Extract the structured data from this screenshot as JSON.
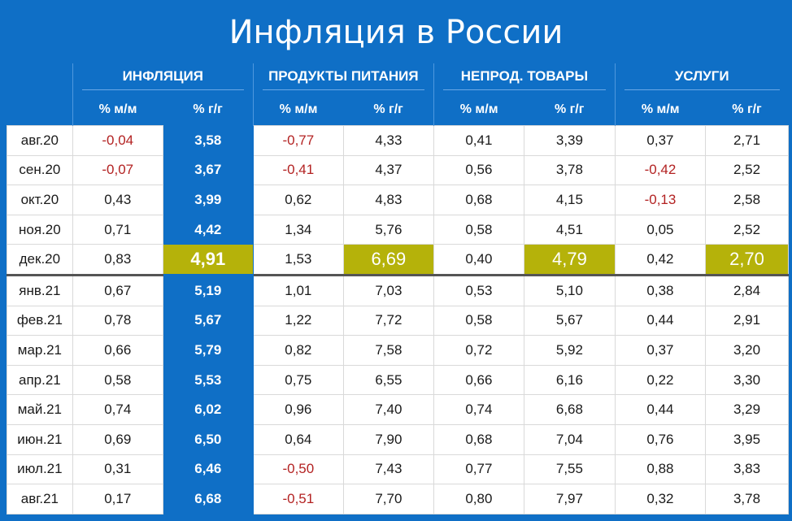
{
  "title": "Инфляция в России",
  "groups": [
    "ИНФЛЯЦИЯ",
    "ПРОДУКТЫ ПИТАНИЯ",
    "НЕПРОД. ТОВАРЫ",
    "УСЛУГИ"
  ],
  "subheaders": [
    "% м/м",
    "% г/г",
    "% м/м",
    "% г/г",
    "% м/м",
    "% г/г",
    "% м/м",
    "% г/г"
  ],
  "colors": {
    "background": "#0f6fc6",
    "negative": "#b32222",
    "highlight": "#b5b20a",
    "divider": "#555555"
  },
  "chart_data": {
    "type": "table",
    "title": "Инфляция в России",
    "columns": [
      "",
      "ИНФЛЯЦИЯ % м/м",
      "ИНФЛЯЦИЯ % г/г",
      "ПРОДУКТЫ ПИТАНИЯ % м/м",
      "ПРОДУКТЫ ПИТАНИЯ % г/г",
      "НЕПРОД. ТОВАРЫ % м/м",
      "НЕПРОД. ТОВАРЫ % г/г",
      "УСЛУГИ % м/м",
      "УСЛУГИ % г/г"
    ],
    "highlighted_row": "дек.20",
    "rows": [
      {
        "month": "авг.20",
        "values": [
          "-0,04",
          "3,58",
          "-0,77",
          "4,33",
          "0,41",
          "3,39",
          "0,37",
          "2,71"
        ]
      },
      {
        "month": "сен.20",
        "values": [
          "-0,07",
          "3,67",
          "-0,41",
          "4,37",
          "0,56",
          "3,78",
          "-0,42",
          "2,52"
        ]
      },
      {
        "month": "окт.20",
        "values": [
          "0,43",
          "3,99",
          "0,62",
          "4,83",
          "0,68",
          "4,15",
          "-0,13",
          "2,58"
        ]
      },
      {
        "month": "ноя.20",
        "values": [
          "0,71",
          "4,42",
          "1,34",
          "5,76",
          "0,58",
          "4,51",
          "0,05",
          "2,52"
        ]
      },
      {
        "month": "дек.20",
        "values": [
          "0,83",
          "4,91",
          "1,53",
          "6,69",
          "0,40",
          "4,79",
          "0,42",
          "2,70"
        ]
      },
      {
        "month": "янв.21",
        "values": [
          "0,67",
          "5,19",
          "1,01",
          "7,03",
          "0,53",
          "5,10",
          "0,38",
          "2,84"
        ]
      },
      {
        "month": "фев.21",
        "values": [
          "0,78",
          "5,67",
          "1,22",
          "7,72",
          "0,58",
          "5,67",
          "0,44",
          "2,91"
        ]
      },
      {
        "month": "мар.21",
        "values": [
          "0,66",
          "5,79",
          "0,82",
          "7,58",
          "0,72",
          "5,92",
          "0,37",
          "3,20"
        ]
      },
      {
        "month": "апр.21",
        "values": [
          "0,58",
          "5,53",
          "0,75",
          "6,55",
          "0,66",
          "6,16",
          "0,22",
          "3,30"
        ]
      },
      {
        "month": "май.21",
        "values": [
          "0,74",
          "6,02",
          "0,96",
          "7,40",
          "0,74",
          "6,68",
          "0,44",
          "3,29"
        ]
      },
      {
        "month": "июн.21",
        "values": [
          "0,69",
          "6,50",
          "0,64",
          "7,90",
          "0,68",
          "7,04",
          "0,76",
          "3,95"
        ]
      },
      {
        "month": "июл.21",
        "values": [
          "0,31",
          "6,46",
          "-0,50",
          "7,43",
          "0,77",
          "7,55",
          "0,88",
          "3,83"
        ]
      },
      {
        "month": "авг.21",
        "values": [
          "0,17",
          "6,68",
          "-0,51",
          "7,70",
          "0,80",
          "7,97",
          "0,32",
          "3,78"
        ]
      }
    ]
  }
}
